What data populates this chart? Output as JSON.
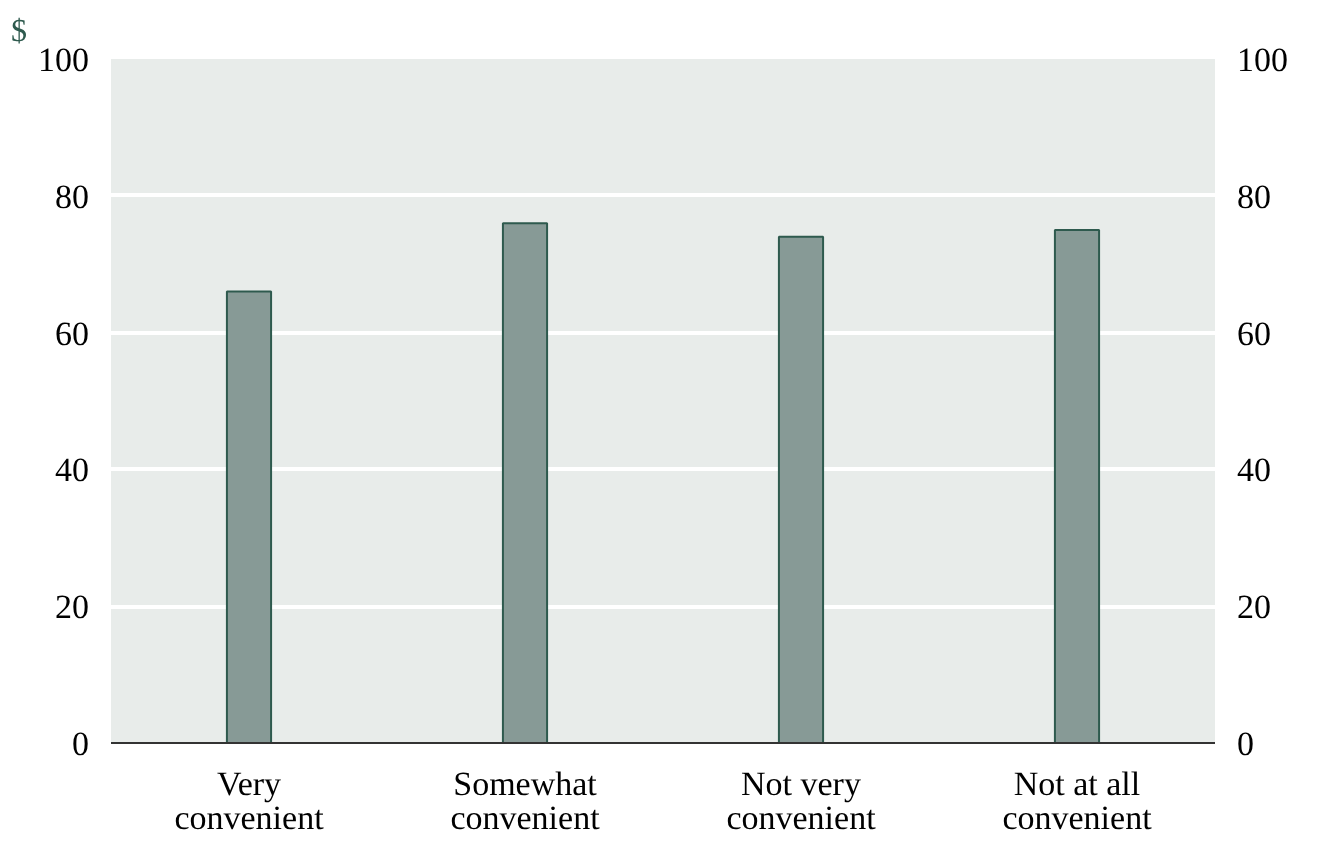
{
  "chart_data": {
    "type": "bar",
    "ylabel": "$",
    "categories": [
      "Very\nconvenient",
      "Somewhat\nconvenient",
      "Not very\nconvenient",
      "Not at all\nconvenient"
    ],
    "values": [
      66,
      76,
      74,
      75
    ],
    "color": "#879a96",
    "ylim": [
      0,
      100
    ],
    "yticks": [
      0,
      20,
      40,
      60,
      80,
      100
    ],
    "y2lim": [
      0,
      100
    ],
    "y2ticks": [
      0,
      20,
      40,
      60,
      80,
      100
    ],
    "grid": "y"
  }
}
